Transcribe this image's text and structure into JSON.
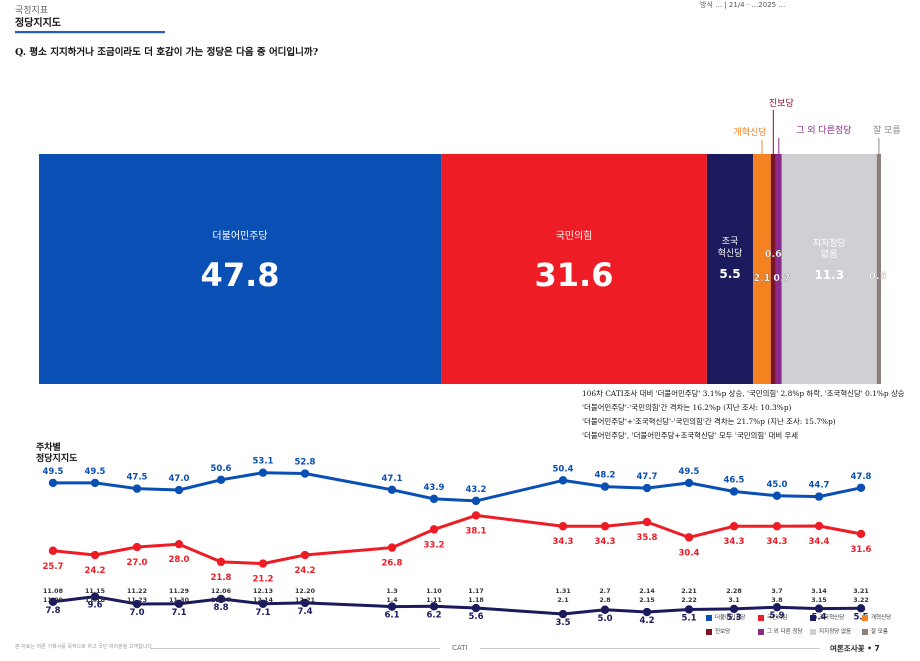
{
  "header": {
    "section": "국정지표",
    "title": "정당지지도",
    "top_right": "방식 … | 21/4 · …2025 …",
    "question": "Q. 평소 지지하거나 조금이라도 더 호감이 가는 정당은 다음 중 어디입니까?"
  },
  "colors": {
    "democratic": "#0a4fb4",
    "ppp": "#ee1c25",
    "rebuilding": "#1b1a5c",
    "reform": "#f58220",
    "progressive": "#7a1424",
    "other": "#8a2a8a",
    "none": "#cfcfd4",
    "dont_know": "#8c7f7a"
  },
  "chart_data": [
    {
      "type": "bar",
      "orientation": "stacked-horizontal-100",
      "categories": [
        "더불어민주당",
        "국민의힘",
        "조국혁신당",
        "개혁신당",
        "진보당",
        "그 외 다른정당",
        "지지정당 없음",
        "잘 모름"
      ],
      "values": [
        47.8,
        31.6,
        5.5,
        2.1,
        0.6,
        0.7,
        11.3,
        0.5
      ],
      "labels": [
        "더불어민주당",
        "국민의힘",
        "조국 혁신당",
        "개혁신당",
        "진보당",
        "그 외 다른정당",
        "지지정당 없음",
        "잘 모름"
      ],
      "value_labels": [
        "47.8",
        "31.6",
        "5.5",
        "2.1",
        "0.6",
        "0.7",
        "11.3",
        "0.5"
      ]
    },
    {
      "type": "line",
      "title": "주차별 정당지지도",
      "x": [
        "11.08 11.09",
        "11.15 11.16",
        "11.22 11.23",
        "11.29 11.30",
        "12.06 12.07",
        "12.13 12.14",
        "12.20 12.21",
        "1.3 1.4",
        "1.10 1.11",
        "1.17 1.18",
        "1.31 2.1",
        "2.7 2.8",
        "2.14 2.15",
        "2.21 2.22",
        "2.28 3.1",
        "3.7 3.8",
        "3.14 3.15",
        "3.21 3.22"
      ],
      "x_top": [
        "11.08",
        "11.15",
        "11.22",
        "11.29",
        "12.06",
        "12.13",
        "12.20",
        "1.3",
        "1.10",
        "1.17",
        "1.31",
        "2.7",
        "2.14",
        "2.21",
        "2.28",
        "3.7",
        "3.14",
        "3.21"
      ],
      "x_bottom": [
        "11.09",
        "11.16",
        "11.23",
        "11.30",
        "12.07",
        "12.14",
        "12.21",
        "1.4",
        "1.11",
        "1.18",
        "2.1",
        "2.8",
        "2.15",
        "2.22",
        "3.1",
        "3.8",
        "3.15",
        "3.22"
      ],
      "series": [
        {
          "name": "더불어민주당",
          "values": [
            49.5,
            49.5,
            47.5,
            47.0,
            50.6,
            53.1,
            52.8,
            47.1,
            43.9,
            43.2,
            50.4,
            48.2,
            47.7,
            49.5,
            46.5,
            45.0,
            44.7,
            47.8
          ]
        },
        {
          "name": "국민의힘",
          "values": [
            25.7,
            24.2,
            27.0,
            28.0,
            21.8,
            21.2,
            24.2,
            26.8,
            33.2,
            38.1,
            34.3,
            34.3,
            35.8,
            30.4,
            34.3,
            34.3,
            34.4,
            31.6
          ]
        },
        {
          "name": "조국혁신당",
          "values": [
            7.8,
            9.6,
            7.0,
            7.1,
            8.8,
            7.1,
            7.4,
            6.1,
            6.2,
            5.6,
            3.5,
            5.0,
            4.2,
            5.1,
            5.3,
            5.9,
            5.4,
            5.5
          ]
        }
      ]
    }
  ],
  "notes": [
    "106차 CATI조사 대비 '더불어민주당' 3.1%p 상승, '국민의힘' 2.8%p 하락, '조국혁신당' 0.1%p 상승",
    "'더불어민주당'-'국민의힘'간 격차는 16.2%p (지난 조사: 10.3%p)",
    "'더불어민주당'+'조국혁신당'-'국민의힘'간 격차는 21.7%p (지난 조사: 15.7%p)",
    "'더불어민주당', '더불어민주당+조국혁신당' 모두 '국민의힘' 대비 우세"
  ],
  "trend_title_line1": "주차별",
  "trend_title_line2": "정당지지도",
  "legend": [
    "더불어민주당",
    "국민의힘",
    "조국혁신당",
    "개혁신당",
    "진보당",
    "그 외 다른 정당",
    "지지정당 없음",
    "잘 모름"
  ],
  "footer": {
    "left": "본 자료는 여론 기획사를 목적으로 하고 국민 여러분을 고객합니다",
    "center": "CATI",
    "right": "여론조사꽃 • 7"
  }
}
